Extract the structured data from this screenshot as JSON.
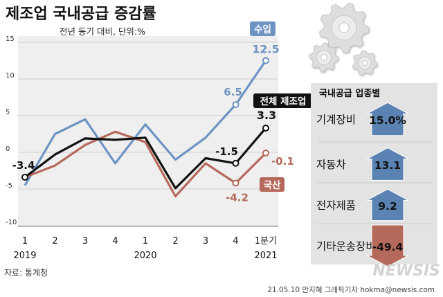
{
  "page": {
    "title": "제조업 국내공급 증감률",
    "subtitle": "전년 동기 대비, 단위:%",
    "source": "자료: 통계청",
    "credit": "21.05.10 안지혜 그래픽기자 hokma@newsis.com",
    "watermark": "NEWSIS"
  },
  "colors": {
    "total": "#111111",
    "import": "#6d93c2",
    "domestic": "#b5695a",
    "up_arrow": "#5a82b2",
    "down_arrow": "#b5695a",
    "grid": "#cfcfcf",
    "plot_bg": "#efefef",
    "panel_bg": "#e3e3e3"
  },
  "chart_data": [
    {
      "type": "line",
      "title": "제조업 국내공급 증감률",
      "subtitle": "전년 동기 대비, 단위:%",
      "categories": [
        "2019-1",
        "2019-2",
        "2019-3",
        "2019-4",
        "2020-1",
        "2020-2",
        "2020-3",
        "2020-4",
        "2021-1"
      ],
      "tick_labels": [
        "1",
        "2",
        "3",
        "4",
        "1",
        "2",
        "3",
        "4",
        "1분기"
      ],
      "year_labels": [
        {
          "label": "2019",
          "category": "2019-1"
        },
        {
          "label": "2020",
          "category": "2020-1"
        },
        {
          "label": "2021",
          "category": "2021-1"
        }
      ],
      "ylim": [
        -10,
        15
      ],
      "yticks": [
        -10,
        -5,
        0,
        5,
        10,
        15
      ],
      "grid": true,
      "series": [
        {
          "name": "수입",
          "color": "#6d93c2",
          "values": [
            -4.5,
            2.5,
            4.5,
            -1.5,
            3.8,
            -1.0,
            2.0,
            6.5,
            12.5
          ],
          "data_labels": {
            "7": "6.5",
            "8": "12.5"
          }
        },
        {
          "name": "전체 제조업",
          "color": "#111111",
          "values": [
            -3.4,
            -0.3,
            1.9,
            1.7,
            2.0,
            -4.9,
            -0.8,
            -1.5,
            3.3
          ],
          "data_labels": {
            "0": "-3.4",
            "7": "-1.5",
            "8": "3.3"
          }
        },
        {
          "name": "국산",
          "color": "#b5695a",
          "values": [
            -3.4,
            -1.8,
            1.0,
            2.8,
            1.4,
            -6.0,
            -1.5,
            -4.2,
            -0.1
          ],
          "data_labels": {
            "7": "-4.2",
            "8": "-0.1"
          }
        }
      ]
    },
    {
      "type": "bar",
      "title": "국내공급 업종별",
      "categories": [
        "기계장비",
        "자동차",
        "전자제품",
        "기타운송장비"
      ],
      "values": [
        15.0,
        13.1,
        9.2,
        -49.4
      ],
      "value_labels": [
        "15.0%",
        "13.1",
        "9.2",
        "-49.4"
      ]
    }
  ]
}
